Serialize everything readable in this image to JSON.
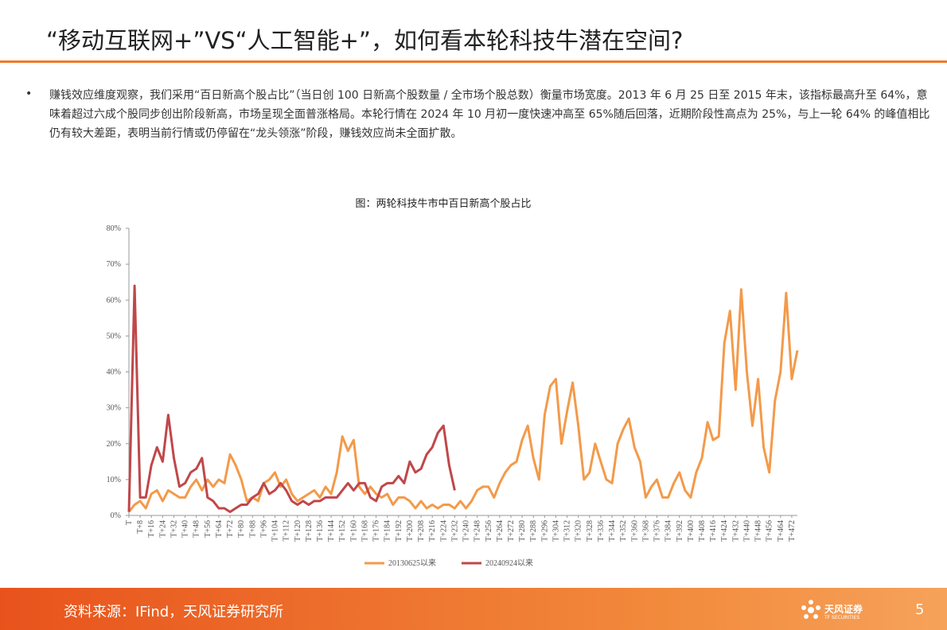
{
  "header": {
    "title": "“移动互联网+”VS“人工智能+”，如何看本轮科技牛潜在空间?"
  },
  "bullet": "赚钱效应维度观察，我们采用“百日新高个股占比”（当日创  100 日新高个股数量 / 全市场个股总数）衡量市场宽度。2013  年 6 月 25 日至 2015 年末，该指标最高升至 64%，意味着超过六成个股同步创出阶段新高，市场呈现全面普涨格局。本轮行情在  2024 年 10 月初一度快速冲高至 65%随后回落，近期阶段性高点为 25%，与上一轮 64% 的峰值相比仍有较大差距，表明当前行情或仍停留在“龙头领涨”阶段，赚钱效应尚未全面扩散。",
  "chart_data": {
    "type": "line",
    "title": "图：两轮科技牛市中百日新高个股占比",
    "x": [
      0,
      4,
      8,
      12,
      16,
      20,
      24,
      28,
      32,
      36,
      40,
      44,
      48,
      52,
      56,
      60,
      64,
      68,
      72,
      76,
      80,
      84,
      88,
      92,
      96,
      100,
      104,
      108,
      112,
      116,
      120,
      124,
      128,
      132,
      136,
      140,
      144,
      148,
      152,
      156,
      160,
      164,
      168,
      172,
      176,
      180,
      184,
      188,
      192,
      196,
      200,
      204,
      208,
      212,
      216,
      220,
      224,
      228,
      232,
      236,
      240,
      244,
      248,
      252,
      256,
      260,
      264,
      268,
      272,
      276,
      280,
      284,
      288,
      292,
      296,
      300,
      304,
      308,
      312,
      316,
      320,
      324,
      328,
      332,
      336,
      340,
      344,
      348,
      352,
      356,
      360,
      364,
      368,
      372,
      376,
      380,
      384,
      388,
      392,
      396,
      400,
      404,
      408,
      412,
      416,
      420,
      424,
      428,
      432,
      436,
      440,
      444,
      448,
      452,
      456,
      460,
      464,
      468,
      472,
      476
    ],
    "series": [
      {
        "name": "20130625以来",
        "color": "#f39a4a",
        "values": [
          1,
          3,
          4,
          2,
          6,
          7,
          4,
          7,
          6,
          5,
          5,
          8,
          10,
          7,
          10,
          8,
          10,
          9,
          17,
          14,
          10,
          4,
          5,
          4,
          9,
          10,
          12,
          8,
          10,
          6,
          4,
          5,
          6,
          7,
          5,
          8,
          6,
          12,
          22,
          18,
          21,
          8,
          6,
          8,
          6,
          5,
          6,
          3,
          5,
          5,
          4,
          2,
          4,
          2,
          3,
          2,
          3,
          3,
          2,
          4,
          2,
          4,
          7,
          8,
          8,
          5,
          9,
          12,
          14,
          15,
          21,
          25,
          16,
          10,
          28,
          36,
          38,
          20,
          29,
          37,
          25,
          10,
          12,
          20,
          15,
          10,
          9,
          20,
          24,
          27,
          19,
          15,
          5,
          8,
          10,
          5,
          5,
          9,
          12,
          7,
          5,
          12,
          16,
          26,
          21,
          22,
          48,
          57,
          35,
          63,
          40,
          25,
          38,
          19,
          12,
          32,
          40,
          62,
          38,
          46
        ]
      },
      {
        "name": "20240924以来",
        "color": "#c0474a",
        "values": [
          1,
          64,
          5,
          5,
          14,
          19,
          15,
          28,
          16,
          8,
          9,
          12,
          13,
          16,
          5,
          4,
          2,
          2,
          1,
          2,
          3,
          3,
          5,
          6,
          9,
          6,
          7,
          9,
          7,
          4,
          3,
          4,
          3,
          4,
          4,
          5,
          5,
          5,
          7,
          9,
          7,
          9,
          9,
          5,
          4,
          8,
          9,
          9,
          11,
          9,
          15,
          12,
          13,
          17,
          19,
          23,
          25,
          14,
          7,
          null,
          null,
          null,
          null,
          null,
          null,
          null,
          null,
          null,
          null,
          null,
          null,
          null,
          null,
          null,
          null,
          null,
          null,
          null,
          null,
          null,
          null,
          null,
          null,
          null,
          null,
          null,
          null,
          null,
          null,
          null,
          null,
          null,
          null,
          null,
          null,
          null,
          null,
          null,
          null,
          null,
          null,
          null,
          null,
          null,
          null,
          null,
          null,
          null,
          null,
          null,
          null,
          null,
          null,
          null,
          null,
          null,
          null,
          null,
          null,
          null
        ]
      }
    ],
    "xlim": [
      0,
      476
    ],
    "xticks": [
      {
        "value": 0,
        "label": "T"
      },
      {
        "value": 8,
        "label": "T+8"
      },
      {
        "value": 16,
        "label": "T+16"
      },
      {
        "value": 24,
        "label": "T+24"
      },
      {
        "value": 32,
        "label": "T+32"
      },
      {
        "value": 40,
        "label": "T+40"
      },
      {
        "value": 48,
        "label": "T+48"
      },
      {
        "value": 56,
        "label": "T+56"
      },
      {
        "value": 64,
        "label": "T+64"
      },
      {
        "value": 72,
        "label": "T+72"
      },
      {
        "value": 80,
        "label": "T+80"
      },
      {
        "value": 88,
        "label": "T+88"
      },
      {
        "value": 96,
        "label": "T+96"
      },
      {
        "value": 104,
        "label": "T+104"
      },
      {
        "value": 112,
        "label": "T+112"
      },
      {
        "value": 120,
        "label": "T+120"
      },
      {
        "value": 128,
        "label": "T+128"
      },
      {
        "value": 136,
        "label": "T+136"
      },
      {
        "value": 144,
        "label": "T+144"
      },
      {
        "value": 152,
        "label": "T+152"
      },
      {
        "value": 160,
        "label": "T+160"
      },
      {
        "value": 168,
        "label": "T+168"
      },
      {
        "value": 176,
        "label": "T+176"
      },
      {
        "value": 184,
        "label": "T+184"
      },
      {
        "value": 192,
        "label": "T+192"
      },
      {
        "value": 200,
        "label": "T+200"
      },
      {
        "value": 208,
        "label": "T+208"
      },
      {
        "value": 216,
        "label": "T+216"
      },
      {
        "value": 224,
        "label": "T+224"
      },
      {
        "value": 232,
        "label": "T+232"
      },
      {
        "value": 240,
        "label": "T+240"
      },
      {
        "value": 248,
        "label": "T+248"
      },
      {
        "value": 256,
        "label": "T+256"
      },
      {
        "value": 264,
        "label": "T+264"
      },
      {
        "value": 272,
        "label": "T+272"
      },
      {
        "value": 280,
        "label": "T+280"
      },
      {
        "value": 288,
        "label": "T+288"
      },
      {
        "value": 296,
        "label": "T+296"
      },
      {
        "value": 304,
        "label": "T+304"
      },
      {
        "value": 312,
        "label": "T+312"
      },
      {
        "value": 320,
        "label": "T+320"
      },
      {
        "value": 328,
        "label": "T+328"
      },
      {
        "value": 336,
        "label": "T+336"
      },
      {
        "value": 344,
        "label": "T+344"
      },
      {
        "value": 352,
        "label": "T+352"
      },
      {
        "value": 360,
        "label": "T+360"
      },
      {
        "value": 368,
        "label": "T+368"
      },
      {
        "value": 376,
        "label": "T+376"
      },
      {
        "value": 384,
        "label": "T+384"
      },
      {
        "value": 392,
        "label": "T+392"
      },
      {
        "value": 400,
        "label": "T+400"
      },
      {
        "value": 408,
        "label": "T+408"
      },
      {
        "value": 416,
        "label": "T+416"
      },
      {
        "value": 424,
        "label": "T+424"
      },
      {
        "value": 432,
        "label": "T+432"
      },
      {
        "value": 440,
        "label": "T+440"
      },
      {
        "value": 448,
        "label": "T+448"
      },
      {
        "value": 456,
        "label": "T+456"
      },
      {
        "value": 464,
        "label": "T+464"
      },
      {
        "value": 472,
        "label": "T+472"
      }
    ],
    "ylim": [
      0,
      80
    ],
    "yticks": [
      {
        "value": 0,
        "label": "0%"
      },
      {
        "value": 10,
        "label": "10%"
      },
      {
        "value": 20,
        "label": "20%"
      },
      {
        "value": 30,
        "label": "30%"
      },
      {
        "value": 40,
        "label": "40%"
      },
      {
        "value": 50,
        "label": "50%"
      },
      {
        "value": 60,
        "label": "60%"
      },
      {
        "value": 70,
        "label": "70%"
      },
      {
        "value": 80,
        "label": "80%"
      }
    ],
    "legend": "bottom"
  },
  "footer": {
    "source": "资料来源：IFind，天风证券研究所",
    "logo": "天风证券",
    "logo_sub": "TF SECURITIES",
    "page": "5"
  }
}
